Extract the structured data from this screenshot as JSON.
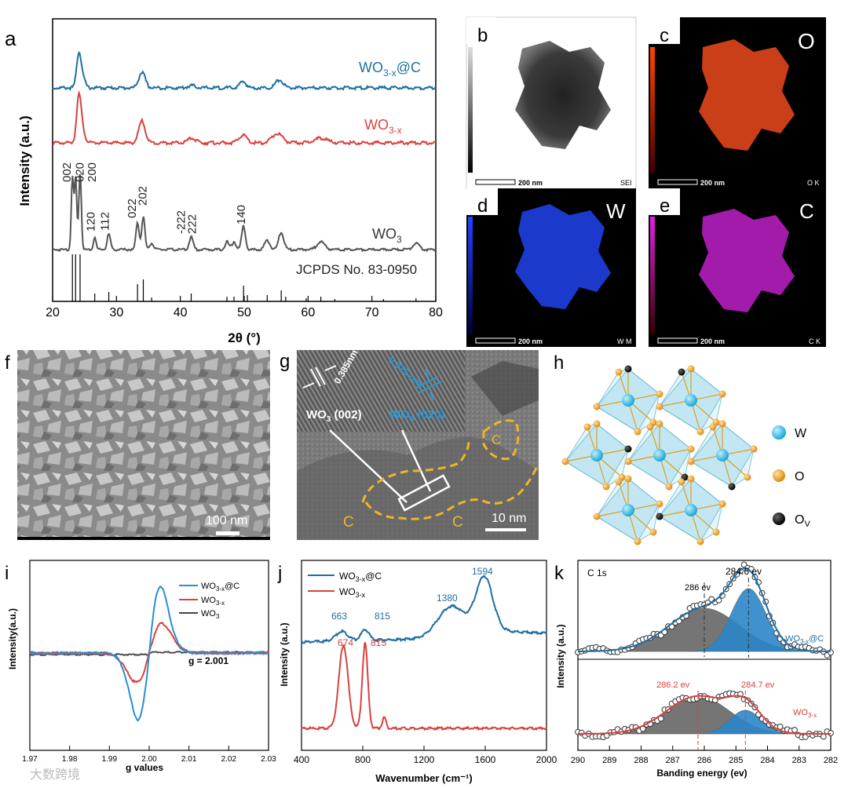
{
  "panel_letters": {
    "a": "a",
    "b": "b",
    "c": "c",
    "d": "d",
    "e": "e",
    "f": "f",
    "g": "g",
    "h": "h",
    "i": "i",
    "j": "j",
    "k": "k"
  },
  "colors": {
    "blue": "#1f6ea3",
    "red": "#d9413d",
    "black": "#333333",
    "orange": "#f0a020",
    "w_atom": "#3cc0e8",
    "o_atom": "#f0a020",
    "ov_atom": "#111111",
    "gold": "#f0b429"
  },
  "panel_a": {
    "ylabel": "Intensity (a.u.)",
    "xlabel": "2θ (°)",
    "series_labels": {
      "s1_main": "WO",
      "s1_sub": "3-x",
      "s1_tail": "@C",
      "s2_main": "WO",
      "s2_sub": "3-x",
      "s3_main": "WO",
      "s3_sub": "3"
    },
    "jcpds": "JCPDS No. 83-0950",
    "peaks": [
      "002",
      "020",
      "200",
      "120",
      "112",
      "022",
      "202",
      "-222",
      "222",
      "140"
    ]
  },
  "panel_b": {
    "scale": "200 nm",
    "tag": "SEI"
  },
  "panel_c": {
    "element": "O",
    "scale": "200 nm",
    "tag": "O K"
  },
  "panel_d": {
    "element": "W",
    "scale": "200 nm",
    "tag": "W M"
  },
  "panel_e": {
    "element": "C",
    "scale": "200 nm",
    "tag": "C K"
  },
  "panel_f": {
    "scale": "100 nm"
  },
  "panel_g": {
    "d1": "0.385nm",
    "d2": "0.375 nm",
    "lbl1_main": "WO",
    "lbl1_sub": "3",
    "lbl1_tail": " (002)",
    "lbl2_main": "WO",
    "lbl2_sub": "3",
    "lbl2_tail": " (020)",
    "c_label": "C",
    "scale": "10 nm"
  },
  "panel_h": {
    "w": "W",
    "o": "O",
    "ov_main": "O",
    "ov_sub": "V"
  },
  "panel_i": {
    "ylabel": "Intensity(a.u.)",
    "xlabel": "g values",
    "g_label": "g = 2.001",
    "legend": [
      {
        "main": "WO",
        "sub": "3-x",
        "tail": "@C"
      },
      {
        "main": "WO",
        "sub": "3-x",
        "tail": ""
      },
      {
        "main": "WO",
        "sub": "3",
        "tail": ""
      }
    ]
  },
  "panel_j": {
    "ylabel": "Intensity (a.u.)",
    "xlabel": "Wavenumber (cm⁻¹)",
    "legend": [
      {
        "main": "WO",
        "sub": "3-x",
        "tail": "@C"
      },
      {
        "main": "WO",
        "sub": "3-x",
        "tail": ""
      }
    ],
    "peak_labels_blue": [
      "663",
      "815",
      "1380",
      "1594"
    ],
    "peak_labels_red": [
      "674",
      "815"
    ]
  },
  "panel_k": {
    "title": "C 1s",
    "ylabel": "Intensity (a.u.)",
    "xlabel": "Banding energy (ev)",
    "top_peaks": [
      "284.6 ev",
      "286 ev"
    ],
    "bottom_peaks": [
      "286.2 ev",
      "284.7 ev"
    ],
    "label_top": {
      "main": "WO",
      "sub": "3-x",
      "tail": "@C"
    },
    "label_bottom": {
      "main": "WO",
      "sub": "3-x",
      "tail": ""
    }
  },
  "watermark": "大数跨境",
  "chart_data": [
    {
      "type": "line",
      "panel": "a",
      "xlabel": "2θ (°)",
      "ylabel": "Intensity (a.u.)",
      "xlim": [
        20,
        80
      ],
      "x_ticks": [
        20,
        30,
        40,
        50,
        60,
        70,
        80
      ],
      "series": [
        {
          "name": "WO3-x@C",
          "peaks_at": [
            24.1,
            34.0,
            49.8,
            55.5
          ]
        },
        {
          "name": "WO3-x",
          "peaks_at": [
            24.1,
            34.0,
            41.8,
            49.8,
            55.2,
            62.0
          ]
        },
        {
          "name": "WO3",
          "peaks_at": [
            23.1,
            23.6,
            24.3,
            26.6,
            28.8,
            33.3,
            34.2,
            41.7,
            49.9,
            55.8
          ]
        }
      ]
    },
    {
      "type": "line",
      "panel": "i",
      "xlabel": "g values",
      "ylabel": "Intensity(a.u.)",
      "xlim": [
        1.97,
        2.03
      ],
      "x_ticks": [
        1.97,
        1.98,
        1.99,
        2.0,
        2.01,
        2.02,
        2.03
      ],
      "series": [
        {
          "name": "WO3-x@C",
          "center": 2.001
        },
        {
          "name": "WO3-x",
          "center": 2.001
        },
        {
          "name": "WO3"
        }
      ]
    },
    {
      "type": "line",
      "panel": "j",
      "xlabel": "Wavenumber (cm⁻¹)",
      "ylabel": "Intensity (a.u.)",
      "xlim": [
        400,
        2000
      ],
      "x_ticks": [
        400,
        800,
        1200,
        1600,
        2000
      ],
      "series": [
        {
          "name": "WO3-x@C",
          "peaks_at": [
            663,
            815,
            1380,
            1594
          ]
        },
        {
          "name": "WO3-x",
          "peaks_at": [
            674,
            815
          ]
        }
      ]
    },
    {
      "type": "scatter",
      "panel": "k",
      "xlabel": "Banding energy (ev)",
      "ylabel": "Intensity (a.u.)",
      "xlim": [
        290,
        282
      ],
      "x_ticks": [
        290,
        289,
        288,
        287,
        286,
        285,
        284,
        283,
        282
      ],
      "series": [
        {
          "name": "WO3-x@C",
          "peaks_at": [
            284.6,
            286.0
          ]
        },
        {
          "name": "WO3-x",
          "peaks_at": [
            284.7,
            286.2
          ]
        }
      ]
    }
  ]
}
